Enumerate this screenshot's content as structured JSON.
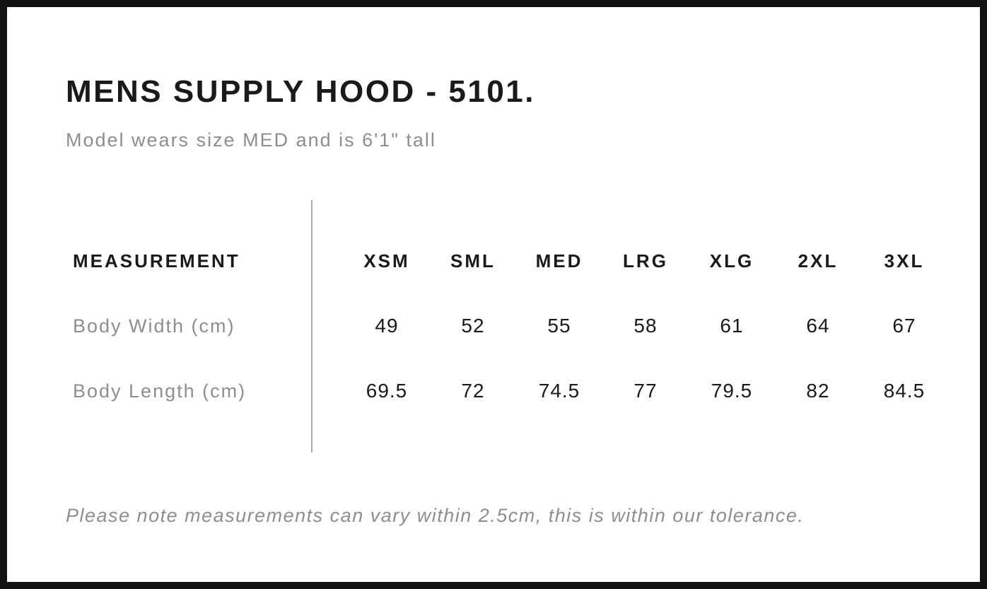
{
  "chart_data": {
    "type": "table",
    "title": "MENS SUPPLY HOOD - 5101.",
    "subtitle": "Model wears size MED and is 6'1\" tall",
    "columns": [
      "MEASUREMENT",
      "XSM",
      "SML",
      "MED",
      "LRG",
      "XLG",
      "2XL",
      "3XL"
    ],
    "rows": [
      {
        "label": "Body Width (cm)",
        "values": [
          49,
          52,
          55,
          58,
          61,
          64,
          67
        ]
      },
      {
        "label": "Body Length (cm)",
        "values": [
          69.5,
          72,
          74.5,
          77,
          79.5,
          82,
          84.5
        ]
      }
    ],
    "footnote": "Please note measurements can vary within 2.5cm, this is within our tolerance."
  },
  "colors": {
    "frame_border": "#111111",
    "heading_text": "#1a1a1a",
    "muted_text": "#8e8e8e",
    "divider": "#ababab",
    "background": "#ffffff"
  }
}
